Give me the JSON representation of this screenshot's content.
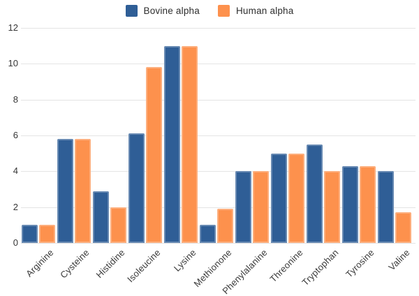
{
  "chart_data": {
    "type": "bar",
    "title": "",
    "xlabel": "",
    "ylabel": "",
    "categories": [
      "Arginine",
      "Cysteine",
      "Histidine",
      "Isoleucine",
      "Lysine",
      "Methionone",
      "Phenylalanine",
      "Threonine",
      "Tryptophan",
      "Tyrosine",
      "Valine"
    ],
    "series": [
      {
        "name": "Bovine alpha",
        "color": "#2F5E96",
        "values": [
          1,
          5.8,
          2.9,
          6.1,
          11,
          1,
          4,
          5,
          5.5,
          4.3,
          4
        ]
      },
      {
        "name": "Human alpha",
        "color": "#FD914D",
        "values": [
          1,
          5.8,
          2,
          9.8,
          11,
          1.9,
          4,
          5,
          4,
          4.3,
          1.7
        ]
      }
    ],
    "ylim": [
      0,
      12
    ],
    "yticks": [
      0,
      2,
      4,
      6,
      8,
      10,
      12
    ],
    "grid": true,
    "legend_position": "top"
  },
  "colors": {
    "background": "#FFFFFF",
    "gridline": "#E4E4E4",
    "axis_text": "#363636",
    "legend_text": "#2E2E2E"
  }
}
